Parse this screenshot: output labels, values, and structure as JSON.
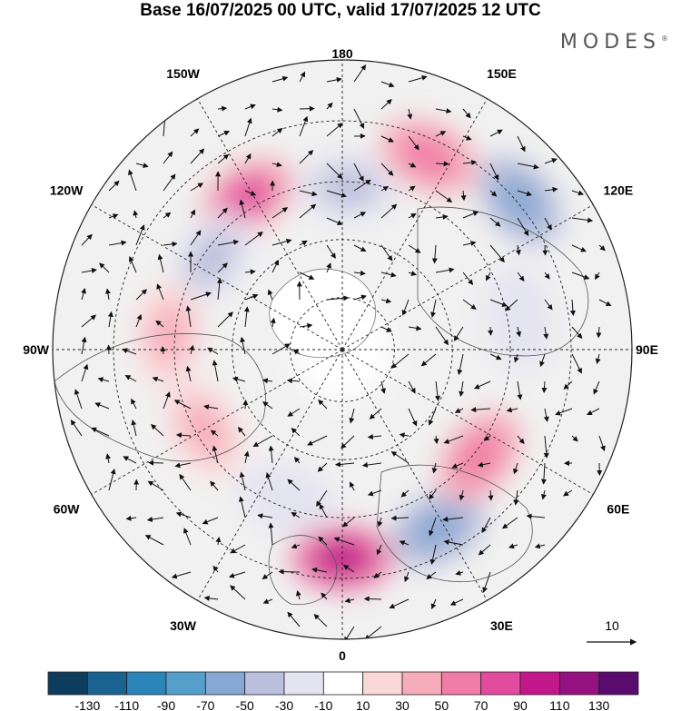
{
  "header": {
    "title": "Base 16/07/2025 00 UTC, valid 17/07/2025 12 UTC",
    "brand": "MODES"
  },
  "map": {
    "projection": "north-polar-stereographic",
    "longitude_labels": [
      {
        "lon": 180,
        "text": "180"
      },
      {
        "lon": 150,
        "text": "150E"
      },
      {
        "lon": 120,
        "text": "120E"
      },
      {
        "lon": 90,
        "text": "90E"
      },
      {
        "lon": 60,
        "text": "60E"
      },
      {
        "lon": 30,
        "text": "30E"
      },
      {
        "lon": 0,
        "text": "0"
      },
      {
        "lon": -30,
        "text": "30W"
      },
      {
        "lon": -60,
        "text": "60W"
      },
      {
        "lon": -90,
        "text": "90W"
      },
      {
        "lon": -120,
        "text": "120W"
      },
      {
        "lon": -150,
        "text": "150W"
      }
    ],
    "reference_vector": "10",
    "anomaly_centers": [
      {
        "lon": 178,
        "lat_radius": 0.56,
        "value": -50
      },
      {
        "lon": 156,
        "lat_radius": 0.73,
        "value": 50
      },
      {
        "lon": 130,
        "lat_radius": 0.8,
        "value": -70
      },
      {
        "lon": -148,
        "lat_radius": 0.62,
        "value": 70
      },
      {
        "lon": -125,
        "lat_radius": 0.55,
        "value": -50
      },
      {
        "lon": -95,
        "lat_radius": 0.6,
        "value": 30
      },
      {
        "lon": -60,
        "lat_radius": 0.55,
        "value": 30
      },
      {
        "lon": -20,
        "lat_radius": 0.55,
        "value": -30
      },
      {
        "lon": 0,
        "lat_radius": 0.72,
        "value": 90
      },
      {
        "lon": 28,
        "lat_radius": 0.7,
        "value": -70
      },
      {
        "lon": 52,
        "lat_radius": 0.6,
        "value": 50
      },
      {
        "lon": 100,
        "lat_radius": 0.62,
        "value": -30
      }
    ]
  },
  "colorbar": {
    "colors": [
      "#0d3c5c",
      "#1a6390",
      "#2b85b9",
      "#559fcb",
      "#87a8d3",
      "#b9bfdc",
      "#e4e3f1",
      "#ffffff",
      "#fbd8d8",
      "#f6acb9",
      "#f07ca7",
      "#e34b9e",
      "#c2188c",
      "#951080",
      "#5a0b6e"
    ],
    "tick_labels": [
      "-130",
      "-110",
      "-90",
      "-70",
      "-50",
      "-30",
      "-10",
      "10",
      "30",
      "50",
      "70",
      "90",
      "110",
      "130"
    ]
  }
}
